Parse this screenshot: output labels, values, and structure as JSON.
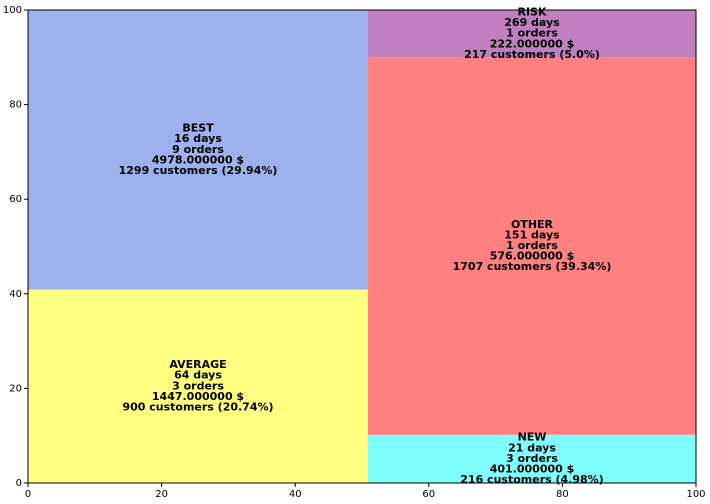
{
  "chart_data": {
    "type": "treemap",
    "xlim": [
      0,
      100
    ],
    "ylim": [
      0,
      100
    ],
    "xticks": [
      "0",
      "20",
      "40",
      "60",
      "80",
      "100"
    ],
    "yticks": [
      "0",
      "20",
      "40",
      "60",
      "80",
      "100"
    ],
    "segments": [
      {
        "name": "AVERAGE",
        "x": 0,
        "y": 0,
        "dx": 50.9,
        "dy": 40.9,
        "color": "#ffff7f",
        "lines": [
          "AVERAGE",
          "64 days",
          "3 orders",
          "1447.000000 $",
          "900 customers (20.74%)"
        ]
      },
      {
        "name": "BEST",
        "x": 0,
        "y": 40.9,
        "dx": 50.9,
        "dy": 59.1,
        "color": "#9db2ec",
        "lines": [
          "BEST",
          "16 days",
          "9 orders",
          "4978.000000 $",
          "1299 customers (29.94%)"
        ]
      },
      {
        "name": "NEW",
        "x": 50.9,
        "y": 0,
        "dx": 49.1,
        "dy": 10.2,
        "color": "#80ffff",
        "lines": [
          "NEW",
          "21 days",
          "3 orders",
          "401.000000 $",
          "216 customers (4.98%)"
        ]
      },
      {
        "name": "OTHER",
        "x": 50.9,
        "y": 10.2,
        "dx": 49.1,
        "dy": 79.8,
        "color": "#ff8080",
        "lines": [
          "OTHER",
          "151 days",
          "1 orders",
          "576.000000 $",
          "1707 customers (39.34%)"
        ]
      },
      {
        "name": "RISK",
        "x": 50.9,
        "y": 90.0,
        "dx": 49.1,
        "dy": 10.0,
        "color": "#c080c0",
        "lines": [
          "RISK",
          "269 days",
          "1 orders",
          "222.000000 $",
          "217 customers (5.0%)"
        ]
      }
    ]
  }
}
